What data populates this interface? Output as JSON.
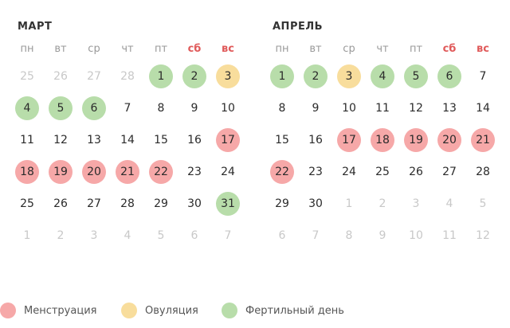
{
  "colors": {
    "menstruation": "#f6a8a8",
    "ovulation": "#f8dd9c",
    "fertile": "#b8ddaa",
    "weekend_text": "#e05a5a",
    "other_month_text": "#c8c8c8"
  },
  "weekdays": [
    {
      "label": "пн",
      "weekend": false
    },
    {
      "label": "вт",
      "weekend": false
    },
    {
      "label": "ср",
      "weekend": false
    },
    {
      "label": "чт",
      "weekend": false
    },
    {
      "label": "пт",
      "weekend": false
    },
    {
      "label": "сб",
      "weekend": true
    },
    {
      "label": "вс",
      "weekend": true
    }
  ],
  "months": [
    {
      "title": "МАРТ",
      "weeks": [
        [
          {
            "d": "25",
            "other": true
          },
          {
            "d": "26",
            "other": true
          },
          {
            "d": "27",
            "other": true
          },
          {
            "d": "28",
            "other": true
          },
          {
            "d": "1",
            "type": "fertile"
          },
          {
            "d": "2",
            "type": "fertile"
          },
          {
            "d": "3",
            "type": "ovulation"
          }
        ],
        [
          {
            "d": "4",
            "type": "fertile"
          },
          {
            "d": "5",
            "type": "fertile"
          },
          {
            "d": "6",
            "type": "fertile"
          },
          {
            "d": "7"
          },
          {
            "d": "8"
          },
          {
            "d": "9"
          },
          {
            "d": "10"
          }
        ],
        [
          {
            "d": "11"
          },
          {
            "d": "12"
          },
          {
            "d": "13"
          },
          {
            "d": "14"
          },
          {
            "d": "15"
          },
          {
            "d": "16"
          },
          {
            "d": "17",
            "type": "menstruation"
          }
        ],
        [
          {
            "d": "18",
            "type": "menstruation"
          },
          {
            "d": "19",
            "type": "menstruation"
          },
          {
            "d": "20",
            "type": "menstruation"
          },
          {
            "d": "21",
            "type": "menstruation"
          },
          {
            "d": "22",
            "type": "menstruation"
          },
          {
            "d": "23"
          },
          {
            "d": "24"
          }
        ],
        [
          {
            "d": "25"
          },
          {
            "d": "26"
          },
          {
            "d": "27"
          },
          {
            "d": "28"
          },
          {
            "d": "29"
          },
          {
            "d": "30"
          },
          {
            "d": "31",
            "type": "fertile"
          }
        ],
        [
          {
            "d": "1",
            "other": true
          },
          {
            "d": "2",
            "other": true
          },
          {
            "d": "3",
            "other": true
          },
          {
            "d": "4",
            "other": true
          },
          {
            "d": "5",
            "other": true
          },
          {
            "d": "6",
            "other": true
          },
          {
            "d": "7",
            "other": true
          }
        ]
      ]
    },
    {
      "title": "АПРЕЛЬ",
      "weeks": [
        [
          {
            "d": "1",
            "type": "fertile"
          },
          {
            "d": "2",
            "type": "fertile"
          },
          {
            "d": "3",
            "type": "ovulation"
          },
          {
            "d": "4",
            "type": "fertile"
          },
          {
            "d": "5",
            "type": "fertile"
          },
          {
            "d": "6",
            "type": "fertile"
          },
          {
            "d": "7"
          }
        ],
        [
          {
            "d": "8"
          },
          {
            "d": "9"
          },
          {
            "d": "10"
          },
          {
            "d": "11"
          },
          {
            "d": "12"
          },
          {
            "d": "13"
          },
          {
            "d": "14"
          }
        ],
        [
          {
            "d": "15"
          },
          {
            "d": "16"
          },
          {
            "d": "17",
            "type": "menstruation"
          },
          {
            "d": "18",
            "type": "menstruation"
          },
          {
            "d": "19",
            "type": "menstruation"
          },
          {
            "d": "20",
            "type": "menstruation"
          },
          {
            "d": "21",
            "type": "menstruation"
          }
        ],
        [
          {
            "d": "22",
            "type": "menstruation"
          },
          {
            "d": "23"
          },
          {
            "d": "24"
          },
          {
            "d": "25"
          },
          {
            "d": "26"
          },
          {
            "d": "27"
          },
          {
            "d": "28"
          }
        ],
        [
          {
            "d": "29"
          },
          {
            "d": "30"
          },
          {
            "d": "1",
            "other": true
          },
          {
            "d": "2",
            "other": true
          },
          {
            "d": "3",
            "other": true
          },
          {
            "d": "4",
            "other": true
          },
          {
            "d": "5",
            "other": true
          }
        ],
        [
          {
            "d": "6",
            "other": true
          },
          {
            "d": "7",
            "other": true
          },
          {
            "d": "8",
            "other": true
          },
          {
            "d": "9",
            "other": true
          },
          {
            "d": "10",
            "other": true
          },
          {
            "d": "11",
            "other": true
          },
          {
            "d": "12",
            "other": true
          }
        ]
      ]
    }
  ],
  "legend": [
    {
      "label": "Менструация",
      "type": "menstruation"
    },
    {
      "label": "Овуляция",
      "type": "ovulation"
    },
    {
      "label": "Фертильный день",
      "type": "fertile"
    }
  ]
}
